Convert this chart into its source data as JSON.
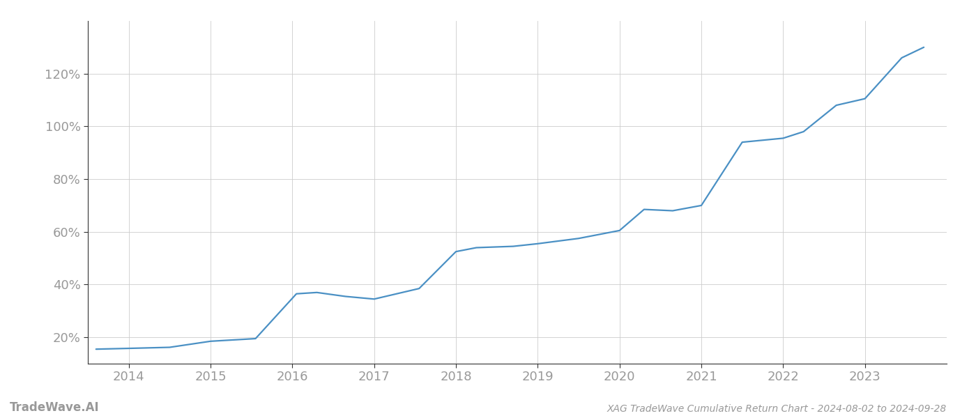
{
  "title": "XAG TradeWave Cumulative Return Chart - 2024-08-02 to 2024-09-28",
  "watermark": "TradeWave.AI",
  "line_color": "#4a90c4",
  "background_color": "#ffffff",
  "grid_color": "#cccccc",
  "x_values": [
    2013.6,
    2014.0,
    2014.5,
    2015.0,
    2015.55,
    2016.05,
    2016.3,
    2016.65,
    2017.0,
    2017.55,
    2018.0,
    2018.25,
    2018.7,
    2019.0,
    2019.5,
    2020.0,
    2020.3,
    2020.65,
    2021.0,
    2021.5,
    2022.0,
    2022.25,
    2022.65,
    2023.0,
    2023.45,
    2023.72
  ],
  "y_values": [
    15.5,
    15.8,
    16.2,
    18.5,
    19.5,
    36.5,
    37.0,
    35.5,
    34.5,
    38.5,
    52.5,
    54.0,
    54.5,
    55.5,
    57.5,
    60.5,
    68.5,
    68.0,
    70.0,
    94.0,
    95.5,
    98.0,
    108.0,
    110.5,
    126.0,
    130.0
  ],
  "ytick_labels": [
    "20%",
    "40%",
    "60%",
    "80%",
    "100%",
    "120%"
  ],
  "ytick_values": [
    20,
    40,
    60,
    80,
    100,
    120
  ],
  "xtick_labels": [
    "2014",
    "2015",
    "2016",
    "2017",
    "2018",
    "2019",
    "2020",
    "2021",
    "2022",
    "2023"
  ],
  "xtick_values": [
    2014,
    2015,
    2016,
    2017,
    2018,
    2019,
    2020,
    2021,
    2022,
    2023
  ],
  "xlim": [
    2013.5,
    2024.0
  ],
  "ylim": [
    10,
    140
  ],
  "line_width": 1.6,
  "tick_fontsize": 13,
  "tick_color": "#999999",
  "spine_color": "#333333",
  "footer_title_fontsize": 10,
  "footer_watermark_fontsize": 12
}
